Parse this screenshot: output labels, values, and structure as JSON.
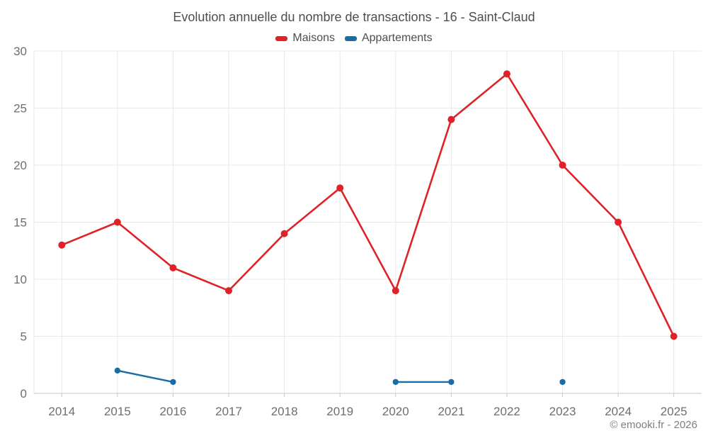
{
  "title": "Evolution annuelle du nombre de transactions - 16 - Saint-Claud",
  "legend": {
    "items": [
      {
        "label": "Maisons",
        "color": "#de2228"
      },
      {
        "label": "Appartements",
        "color": "#1a6ca6"
      }
    ]
  },
  "footer": {
    "copyright": "© emooki.fr - 2026"
  },
  "chart_data": {
    "type": "line",
    "title": "Evolution annuelle du nombre de transactions - 16 - Saint-Claud",
    "categories": [
      "2014",
      "2015",
      "2016",
      "2017",
      "2018",
      "2019",
      "2020",
      "2021",
      "2022",
      "2023",
      "2024",
      "2025"
    ],
    "series": [
      {
        "name": "Maisons",
        "color": "#de2228",
        "marker_radius": 5,
        "line_width": 2.6,
        "values": [
          13,
          15,
          11,
          9,
          14,
          18,
          9,
          24,
          28,
          20,
          15,
          5
        ]
      },
      {
        "name": "Appartements",
        "color": "#1a6ca6",
        "marker_radius": 4.2,
        "line_width": 2.4,
        "values": [
          null,
          2,
          1,
          null,
          null,
          null,
          1,
          1,
          null,
          1,
          null,
          null
        ]
      }
    ],
    "xlabel": "",
    "ylabel": "",
    "ylim": [
      0,
      30
    ],
    "yticks": [
      0,
      5,
      10,
      15,
      20,
      25,
      30
    ],
    "grid": true,
    "legend_position": "top",
    "colors": {
      "grid": "#e8e8e8",
      "axis": "#c6c6c6",
      "tick_label": "#6e6e6e"
    }
  }
}
